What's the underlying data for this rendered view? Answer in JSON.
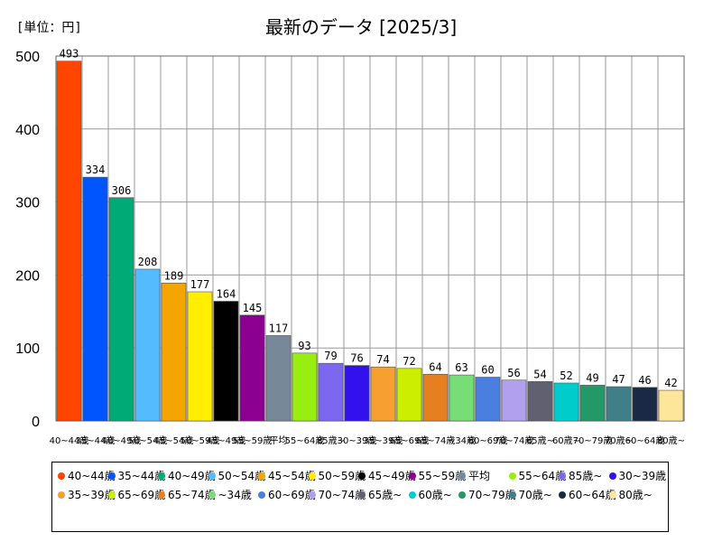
{
  "unit_label": "[単位：円]",
  "chart_data": {
    "type": "bar",
    "title": "最新のデータ [2025/3]",
    "xlabel": "",
    "ylabel": "",
    "ylim": [
      0,
      500
    ],
    "yticks": [
      0,
      100,
      200,
      300,
      400,
      500
    ],
    "grid": true,
    "categories": [
      "40~44歳",
      "35~44歳",
      "40~49歳",
      "50~54歳",
      "45~54歳",
      "50~59歳",
      "45~49歳",
      "55~59歳",
      "平均",
      "55~64歳",
      "85歳~",
      "30~39歳",
      "35~39歳",
      "65~69歳",
      "65~74歳",
      "~34歳",
      "60~69歳",
      "70~74歳",
      "65歳~",
      "60歳~",
      "70~79歳",
      "70歳~",
      "60~64歳",
      "80歳~"
    ],
    "tick_labels": [
      "40~44歳",
      "35~44歳",
      "40~49歳",
      "50~54歳",
      "45~54歳",
      "50~59歳",
      "45~49歳",
      "55~59歳",
      "平均",
      "55~64歳",
      "85歳~",
      "30~39歳",
      "35~39歳",
      "65~69歳",
      "65~74歳",
      "~34歳",
      "60~69歳",
      "70~74歳",
      "65歳~",
      "60歳~",
      "70~79歳",
      "70歳~",
      "60~64歳",
      "80歳~"
    ],
    "values": [
      493,
      334,
      306,
      208,
      189,
      177,
      164,
      145,
      117,
      93,
      79,
      76,
      74,
      72,
      64,
      63,
      60,
      56,
      54,
      52,
      49,
      47,
      46,
      42
    ],
    "colors": [
      "#ff4500",
      "#0055ff",
      "#00aa77",
      "#55bbff",
      "#f5a500",
      "#ffee00",
      "#000000",
      "#8b0090",
      "#778899",
      "#99ee11",
      "#7b68ee",
      "#3311ee",
      "#f5a030",
      "#ccee00",
      "#e57f20",
      "#77dd77",
      "#4a7fe0",
      "#b0a0ee",
      "#606070",
      "#00cccc",
      "#229966",
      "#3f7f88",
      "#1a2a44",
      "#fde59a"
    ],
    "legend": "bottom"
  }
}
